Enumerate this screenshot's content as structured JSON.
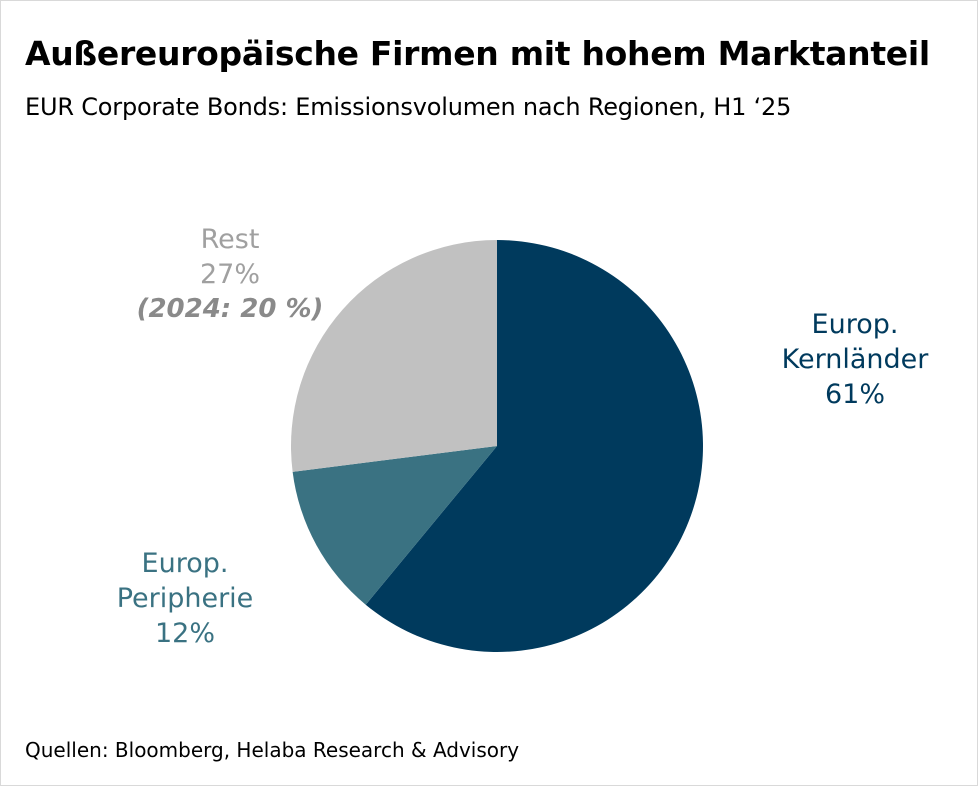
{
  "title": "Außereuropäische Firmen mit hohem Marktanteil",
  "subtitle": "EUR Corporate Bonds: Emissionsvolumen nach Regionen, H1 ‘25",
  "source": "Quellen: Bloomberg, Helaba Research & Advisory",
  "chart_data": {
    "type": "pie",
    "slices": [
      {
        "line1": "Europ.",
        "line2": "Kernländer",
        "value_label": "61%",
        "value": 61,
        "color": "#003a5d"
      },
      {
        "line1": "Europ.",
        "line2": "Peripherie",
        "value_label": "12%",
        "value": 12,
        "color": "#3a7282"
      },
      {
        "line1": "Rest",
        "value_label": "27%",
        "note": "(2024: 20 %)",
        "value": 27,
        "color": "#c1c1c1"
      }
    ],
    "start_angle_deg": 0,
    "direction": "clockwise"
  }
}
